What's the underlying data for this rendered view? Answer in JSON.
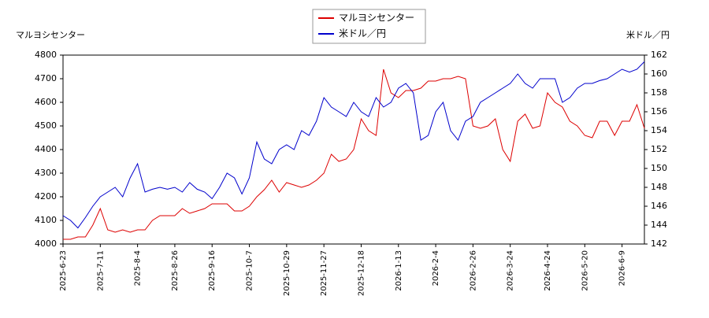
{
  "chart_data": {
    "type": "line",
    "y_label": "マルヨシセンター",
    "y2_label": "米ドル／円",
    "xlim": [
      0,
      78
    ],
    "xticks": [
      {
        "value": 0,
        "label": "2025-6-23"
      },
      {
        "value": 5,
        "label": "2025-7-11"
      },
      {
        "value": 10,
        "label": "2025-8-4"
      },
      {
        "value": 15,
        "label": "2025-8-26"
      },
      {
        "value": 20,
        "label": "2025-9-16"
      },
      {
        "value": 25,
        "label": "2025-10-7"
      },
      {
        "value": 30,
        "label": "2025-10-29"
      },
      {
        "value": 35,
        "label": "2025-11-27"
      },
      {
        "value": 40,
        "label": "2025-12-18"
      },
      {
        "value": 45,
        "label": "2026-1-13"
      },
      {
        "value": 50,
        "label": "2026-2-4"
      },
      {
        "value": 55,
        "label": "2026-2-26"
      },
      {
        "value": 60,
        "label": "2026-3-24"
      },
      {
        "value": 65,
        "label": "2026-4-24"
      },
      {
        "value": 70,
        "label": "2026-5-20"
      },
      {
        "value": 75,
        "label": "2026-6-9"
      }
    ],
    "ylim": [
      4000,
      4800
    ],
    "yticks": [
      4000,
      4100,
      4200,
      4300,
      4400,
      4500,
      4600,
      4700,
      4800
    ],
    "y2lim": [
      142,
      162
    ],
    "y2ticks": [
      142,
      144,
      146,
      148,
      150,
      152,
      154,
      156,
      158,
      160,
      162
    ],
    "grid": false,
    "legend": "top",
    "series": [
      {
        "name": "マルヨシセンター",
        "color": "#dd0000",
        "axis": "y",
        "values": [
          4020,
          4020,
          4030,
          4030,
          4080,
          4150,
          4060,
          4050,
          4060,
          4050,
          4060,
          4060,
          4100,
          4120,
          4120,
          4120,
          4150,
          4130,
          4140,
          4150,
          4170,
          4170,
          4170,
          4140,
          4140,
          4160,
          4200,
          4230,
          4270,
          4220,
          4260,
          4250,
          4240,
          4250,
          4270,
          4300,
          4380,
          4350,
          4360,
          4400,
          4530,
          4480,
          4460,
          4740,
          4640,
          4620,
          4650,
          4650,
          4660,
          4690,
          4690,
          4700,
          4700,
          4710,
          4700,
          4500,
          4490,
          4500,
          4530,
          4400,
          4350,
          4520,
          4550,
          4490,
          4500,
          4640,
          4600,
          4580,
          4520,
          4500,
          4460,
          4450,
          4520,
          4520,
          4460,
          4520,
          4520,
          4590,
          4490
        ]
      },
      {
        "name": "米ドル／円",
        "color": "#0000cc",
        "axis": "y2",
        "values": [
          145,
          144.5,
          143.7,
          144.8,
          146,
          147,
          147.5,
          148,
          147,
          149,
          150.5,
          147.5,
          147.8,
          148,
          147.8,
          148,
          147.5,
          148.5,
          147.8,
          147.5,
          146.8,
          148,
          149.5,
          149,
          147.3,
          149,
          152.8,
          151,
          150.5,
          152,
          152.5,
          152,
          154,
          153.5,
          155,
          157.5,
          156.5,
          156,
          155.5,
          157,
          156,
          155.5,
          157.5,
          156.5,
          157,
          158.5,
          159,
          158,
          153,
          153.5,
          156,
          157,
          154,
          153,
          155,
          155.5,
          157,
          157.5,
          158,
          158.5,
          159,
          160,
          159,
          158.5,
          159.5,
          159.5,
          159.5,
          157,
          157.5,
          158.5,
          159,
          159,
          159.3,
          159.5,
          160,
          160.5,
          160.2,
          160.5,
          161.3
        ]
      }
    ]
  }
}
